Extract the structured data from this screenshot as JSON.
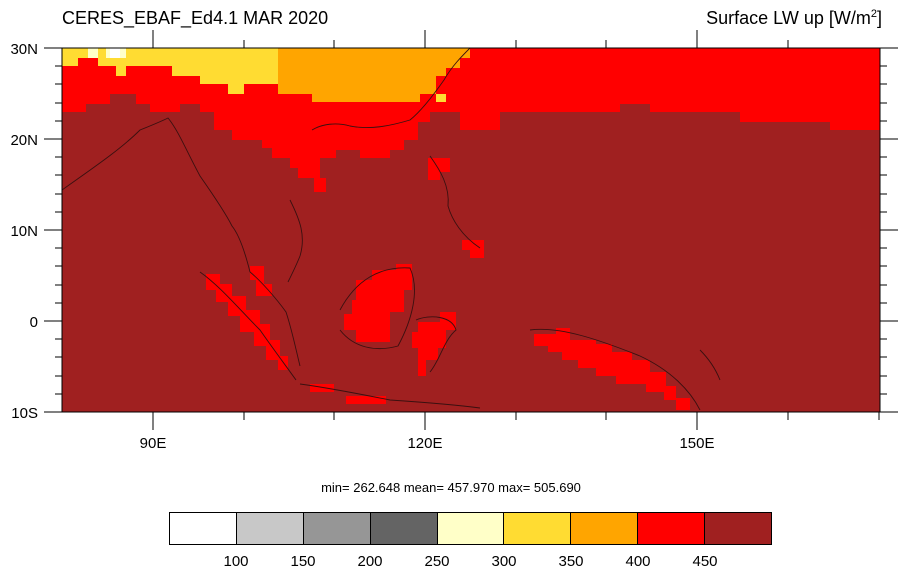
{
  "title_left": "CERES_EBAF_Ed4.1 MAR 2020",
  "title_right": {
    "text": "Surface LW up [W/m",
    "sup": "2",
    "close": "]"
  },
  "map": {
    "lon_range": [
      80,
      170
    ],
    "lat_range": [
      -10,
      30
    ],
    "lat_labels": [
      "30N",
      "20N",
      "10N",
      "0",
      "10S"
    ],
    "lat_values": [
      30,
      20,
      10,
      0,
      -10
    ],
    "lon_labels": [
      "90E",
      "120E",
      "150E"
    ],
    "lon_values": [
      90,
      120,
      150
    ]
  },
  "stats": "min= 262.648  mean= 457.970  max= 505.690",
  "colorbar": {
    "colors": [
      "#ffffff",
      "#c8c8c8",
      "#969696",
      "#646464",
      "#ffffc8",
      "#ffdc32",
      "#ffa500",
      "#ff0000",
      "#a02020"
    ],
    "labels": [
      "100",
      "150",
      "200",
      "250",
      "300",
      "350",
      "400",
      "450"
    ]
  }
}
